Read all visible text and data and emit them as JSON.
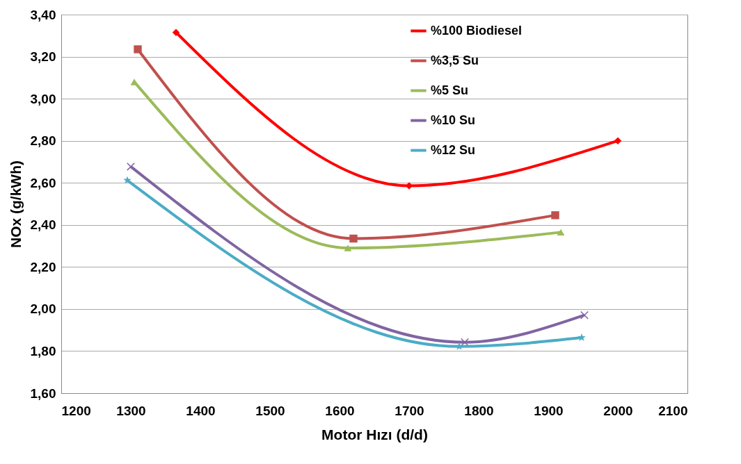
{
  "chart_data": {
    "type": "line",
    "xlabel": "Motor Hızı   (d/d)",
    "ylabel": "NOx  (g/kWh)",
    "xlim": [
      1200,
      2100
    ],
    "xticks": [
      1200,
      1300,
      1400,
      1500,
      1600,
      1700,
      1800,
      1900,
      2000,
      2100
    ],
    "ylim": [
      1.6,
      3.4
    ],
    "yticks": [
      {
        "value": 1.6,
        "label": "1,60"
      },
      {
        "value": 1.8,
        "label": "1,80"
      },
      {
        "value": 2.0,
        "label": "2,00"
      },
      {
        "value": 2.2,
        "label": "2,20"
      },
      {
        "value": 2.4,
        "label": "2,40"
      },
      {
        "value": 2.6,
        "label": "2,60"
      },
      {
        "value": 2.8,
        "label": "2,80"
      },
      {
        "value": 3.0,
        "label": "3,00"
      },
      {
        "value": 3.2,
        "label": "3,20"
      },
      {
        "value": 3.4,
        "label": "3,40"
      }
    ],
    "grid": "y",
    "legend": "top right",
    "series": [
      {
        "name": "%100 Biodiesel",
        "color": "#ff0000",
        "marker": "diamond",
        "x": [
          1365,
          1700,
          2000
        ],
        "values": [
          3.315,
          2.586,
          2.8
        ]
      },
      {
        "name": "%3,5 Su",
        "color": "#c0504d",
        "marker": "square",
        "x": [
          1310,
          1620,
          1910
        ],
        "values": [
          3.235,
          2.335,
          2.446
        ]
      },
      {
        "name": "%5 Su",
        "color": "#9bbb59",
        "marker": "triangle",
        "x": [
          1305,
          1612,
          1918
        ],
        "values": [
          3.08,
          2.29,
          2.365
        ]
      },
      {
        "name": "%10 Su",
        "color": "#8064a2",
        "marker": "cross",
        "x": [
          1300,
          1780,
          1952
        ],
        "values": [
          2.677,
          1.842,
          1.971
        ]
      },
      {
        "name": "%12 Su",
        "color": "#4bacc6",
        "marker": "star",
        "x": [
          1295,
          1772,
          1948
        ],
        "values": [
          2.612,
          1.822,
          1.864
        ]
      }
    ]
  }
}
